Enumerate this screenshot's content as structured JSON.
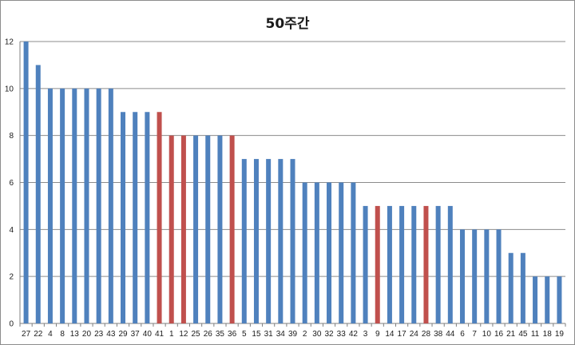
{
  "chart_data": {
    "type": "bar",
    "title": "50주간",
    "xlabel": "",
    "ylabel": "",
    "ylim": [
      0,
      12
    ],
    "yticks": [
      0,
      2,
      4,
      6,
      8,
      10,
      12
    ],
    "grid": "horizontal",
    "legend": "none",
    "colors": {
      "normal": "#4f81bd",
      "highlight": "#c0504d"
    },
    "categories": [
      "27",
      "22",
      "4",
      "8",
      "13",
      "20",
      "23",
      "43",
      "29",
      "37",
      "40",
      "41",
      "1",
      "12",
      "25",
      "26",
      "35",
      "36",
      "5",
      "15",
      "31",
      "34",
      "39",
      "2",
      "30",
      "32",
      "33",
      "42",
      "3",
      "9",
      "14",
      "17",
      "24",
      "28",
      "38",
      "44",
      "6",
      "7",
      "10",
      "16",
      "21",
      "45",
      "11",
      "18",
      "19"
    ],
    "values": [
      12,
      11,
      10,
      10,
      10,
      10,
      10,
      10,
      9,
      9,
      9,
      9,
      8,
      8,
      8,
      8,
      8,
      8,
      7,
      7,
      7,
      7,
      7,
      6,
      6,
      6,
      6,
      6,
      5,
      5,
      5,
      5,
      5,
      5,
      5,
      5,
      4,
      4,
      4,
      4,
      3,
      3,
      2,
      2,
      2
    ],
    "highlighted": [
      "41",
      "1",
      "12",
      "36",
      "9",
      "28"
    ]
  }
}
